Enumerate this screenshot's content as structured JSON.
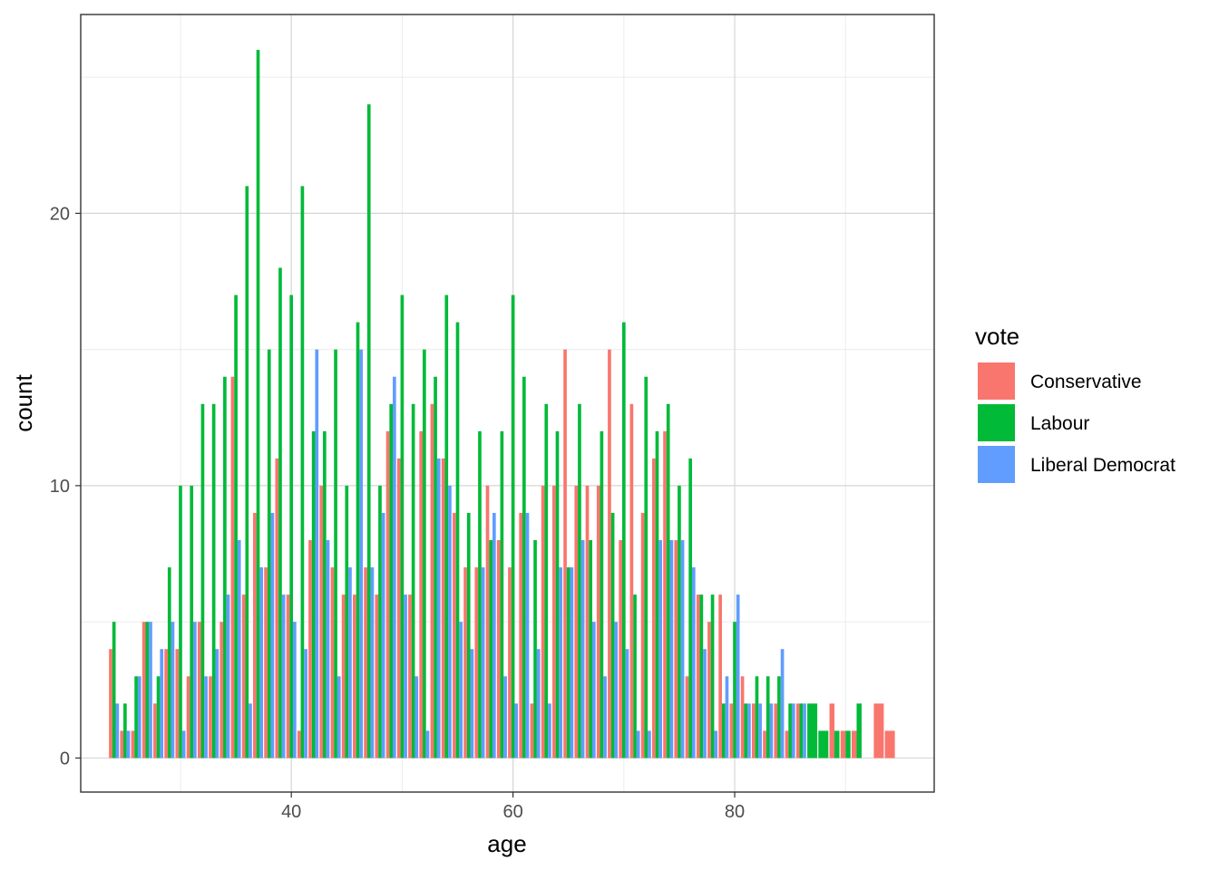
{
  "chart_data": {
    "type": "bar",
    "position": "dodge",
    "xlabel": "age",
    "ylabel": "count",
    "x_ticks": [
      40,
      60,
      80
    ],
    "y_ticks": [
      0,
      10,
      20
    ],
    "xlim": [
      21,
      98
    ],
    "ylim": [
      -1.25,
      27.3
    ],
    "grid": true,
    "legend_position": "right",
    "legend": {
      "title": "vote",
      "entries": [
        {
          "name": "Conservative",
          "color": "#F8766D"
        },
        {
          "name": "Labour",
          "color": "#00BA38"
        },
        {
          "name": "Liberal Democrat",
          "color": "#619CFF"
        }
      ]
    },
    "series": [
      {
        "name": "Conservative",
        "color": "#F8766D",
        "x": [
          24,
          25,
          26,
          27,
          28,
          29,
          30,
          31,
          32,
          33,
          34,
          35,
          36,
          37,
          38,
          39,
          40,
          41,
          42,
          43,
          44,
          45,
          46,
          47,
          48,
          49,
          50,
          51,
          52,
          53,
          54,
          55,
          56,
          57,
          58,
          59,
          60,
          61,
          62,
          63,
          64,
          65,
          66,
          67,
          68,
          69,
          70,
          71,
          72,
          73,
          74,
          75,
          76,
          77,
          78,
          79,
          80,
          81,
          82,
          83,
          84,
          85,
          86,
          89,
          90,
          91,
          93,
          94
        ],
        "values": [
          4,
          1,
          1,
          5,
          2,
          4,
          4,
          3,
          5,
          3,
          5,
          14,
          6,
          9,
          7,
          11,
          6,
          1,
          8,
          10,
          7,
          6,
          6,
          7,
          6,
          12,
          11,
          6,
          12,
          13,
          11,
          9,
          7,
          7,
          10,
          8,
          7,
          9,
          2,
          10,
          10,
          15,
          10,
          10,
          10,
          15,
          8,
          13,
          9,
          11,
          12,
          8,
          3,
          6,
          5,
          6,
          2,
          3,
          2,
          1,
          2,
          1,
          2,
          2,
          1,
          1,
          2,
          1
        ]
      },
      {
        "name": "Labour",
        "color": "#00BA38",
        "x": [
          24,
          25,
          26,
          27,
          28,
          29,
          30,
          31,
          32,
          33,
          34,
          35,
          36,
          37,
          38,
          39,
          40,
          41,
          42,
          43,
          44,
          45,
          46,
          47,
          48,
          49,
          50,
          51,
          52,
          53,
          54,
          55,
          56,
          57,
          58,
          59,
          60,
          61,
          62,
          63,
          64,
          65,
          66,
          67,
          68,
          69,
          70,
          71,
          72,
          73,
          74,
          75,
          76,
          77,
          78,
          79,
          80,
          81,
          82,
          83,
          84,
          85,
          86,
          87,
          88,
          89,
          90,
          91
        ],
        "values": [
          5,
          2,
          3,
          5,
          3,
          7,
          10,
          10,
          13,
          13,
          14,
          17,
          21,
          26,
          15,
          18,
          17,
          21,
          12,
          12,
          15,
          10,
          16,
          24,
          10,
          13,
          17,
          13,
          15,
          14,
          17,
          16,
          9,
          12,
          8,
          12,
          17,
          14,
          8,
          13,
          12,
          7,
          13,
          8,
          12,
          9,
          16,
          6,
          14,
          12,
          13,
          10,
          11,
          6,
          6,
          2,
          5,
          2,
          3,
          3,
          3,
          2,
          2,
          2,
          1,
          1,
          1,
          2
        ]
      },
      {
        "name": "Liberal Democrat",
        "color": "#619CFF",
        "x": [
          24,
          25,
          26,
          27,
          28,
          29,
          30,
          31,
          32,
          33,
          34,
          35,
          36,
          37,
          38,
          39,
          40,
          41,
          42,
          43,
          44,
          45,
          46,
          47,
          48,
          49,
          50,
          51,
          52,
          53,
          54,
          55,
          56,
          57,
          58,
          59,
          60,
          61,
          62,
          63,
          64,
          65,
          66,
          67,
          68,
          69,
          70,
          71,
          72,
          73,
          74,
          75,
          76,
          77,
          78,
          79,
          80,
          81,
          82,
          83,
          84,
          85,
          86
        ],
        "values": [
          2,
          1,
          3,
          5,
          4,
          5,
          1,
          5,
          3,
          4,
          6,
          8,
          2,
          7,
          9,
          6,
          5,
          4,
          15,
          8,
          3,
          7,
          15,
          7,
          9,
          14,
          6,
          3,
          1,
          11,
          10,
          5,
          4,
          7,
          9,
          3,
          2,
          9,
          4,
          2,
          7,
          7,
          8,
          5,
          3,
          5,
          4,
          1,
          1,
          8,
          8,
          8,
          7,
          4,
          1,
          3,
          6,
          2,
          2,
          2,
          4,
          2,
          2
        ]
      }
    ]
  }
}
